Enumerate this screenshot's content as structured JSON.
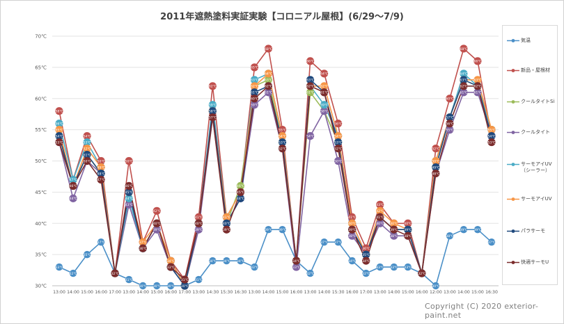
{
  "title": "2011年遮熱塗料実証実験【コロニアル屋根】(6/29〜7/9)",
  "copyright": "Copyright (C) 2020 exterior-paint.net",
  "chart_data": {
    "type": "line",
    "title": "2011年遮熱塗料実証実験【コロニアル屋根】(6/29〜7/9)",
    "xlabel": "",
    "ylabel": "",
    "ylim": [
      30,
      70
    ],
    "yticks": [
      "30℃",
      "35℃",
      "40℃",
      "45℃",
      "50℃",
      "55℃",
      "60℃",
      "65℃",
      "70℃"
    ],
    "ytick_values": [
      30,
      35,
      40,
      45,
      50,
      55,
      60,
      65,
      70
    ],
    "grid": "horizontal",
    "legend_position": "right",
    "categories": [
      "13:00",
      "14:00",
      "15:00",
      "16:00",
      "17:00",
      "13:00",
      "14:00",
      "15:00",
      "16:00",
      "17:00",
      "13:00",
      "14:30",
      "15:30",
      "16:30",
      "13:00",
      "14:00",
      "15:00",
      "16:00",
      "13:00",
      "14:00",
      "15:30",
      "16:00",
      "17:00",
      "13:00",
      "14:00",
      "15:00",
      "16:00",
      "12:00",
      "13:00",
      "14:00",
      "15:00",
      "16:30"
    ],
    "series": [
      {
        "name": "気温",
        "color": "#4a8fc7",
        "values": [
          33,
          32,
          35,
          37,
          32,
          31,
          30,
          30,
          30,
          30,
          31,
          34,
          34,
          34,
          33,
          39,
          39,
          34,
          32,
          37,
          37,
          34,
          32,
          33,
          33,
          33,
          32,
          30,
          38,
          39,
          39,
          37
        ]
      },
      {
        "name": "新品・屋根材",
        "color": "#c0504d",
        "values": [
          58,
          47,
          54,
          50,
          32,
          50,
          37,
          42,
          34,
          31,
          41,
          62,
          41,
          45,
          65,
          68,
          55,
          34,
          66,
          64,
          56,
          41,
          36,
          43,
          40,
          40,
          32,
          52,
          60,
          68,
          66,
          54
        ]
      },
      {
        "name": "クールタイトSi",
        "color": "#9bbb59",
        "values": [
          54,
          46,
          51,
          48,
          32,
          45,
          36,
          40,
          33,
          30,
          40,
          58,
          40,
          46,
          62,
          63,
          53,
          34,
          61,
          58,
          53,
          39,
          35,
          41,
          39,
          39,
          32,
          49,
          57,
          63,
          62,
          55
        ]
      },
      {
        "name": "クールタイト",
        "color": "#8064a2",
        "values": [
          53,
          44,
          50,
          48,
          32,
          43,
          36,
          39,
          33,
          30,
          39,
          57,
          40,
          44,
          59,
          61,
          52,
          33,
          54,
          58,
          50,
          38,
          35,
          40,
          38,
          38,
          32,
          48,
          55,
          61,
          61,
          54
        ]
      },
      {
        "name": "サーモアイUV（シーラー）",
        "color": "#4bacc6",
        "values": [
          56,
          47,
          53,
          49,
          32,
          44,
          36,
          40,
          34,
          30,
          40,
          59,
          41,
          45,
          63,
          64,
          54,
          34,
          62,
          59,
          54,
          40,
          35,
          41,
          39,
          39,
          32,
          50,
          57,
          64,
          62,
          55
        ]
      },
      {
        "name": "サーモアイUV",
        "color": "#f79646",
        "values": [
          55,
          46,
          52,
          49,
          32,
          45,
          37,
          40,
          34,
          30,
          40,
          58,
          41,
          45,
          62,
          64,
          54,
          34,
          62,
          62,
          54,
          40,
          35,
          42,
          40,
          39,
          32,
          50,
          57,
          63,
          63,
          55
        ]
      },
      {
        "name": "パラサーモ",
        "color": "#1f497d",
        "values": [
          54,
          46,
          51,
          48,
          32,
          45,
          36,
          40,
          33,
          30,
          40,
          58,
          40,
          44,
          61,
          62,
          53,
          34,
          63,
          61,
          53,
          39,
          35,
          41,
          39,
          39,
          32,
          49,
          57,
          63,
          62,
          54
        ]
      },
      {
        "name": "快適サーモU",
        "color": "#7b2c2c",
        "values": [
          53,
          46,
          50,
          47,
          32,
          46,
          36,
          40,
          33,
          31,
          40,
          57,
          39,
          45,
          60,
          62,
          52,
          34,
          62,
          61,
          52,
          39,
          34,
          41,
          39,
          38,
          32,
          48,
          56,
          62,
          62,
          53
        ]
      }
    ]
  }
}
